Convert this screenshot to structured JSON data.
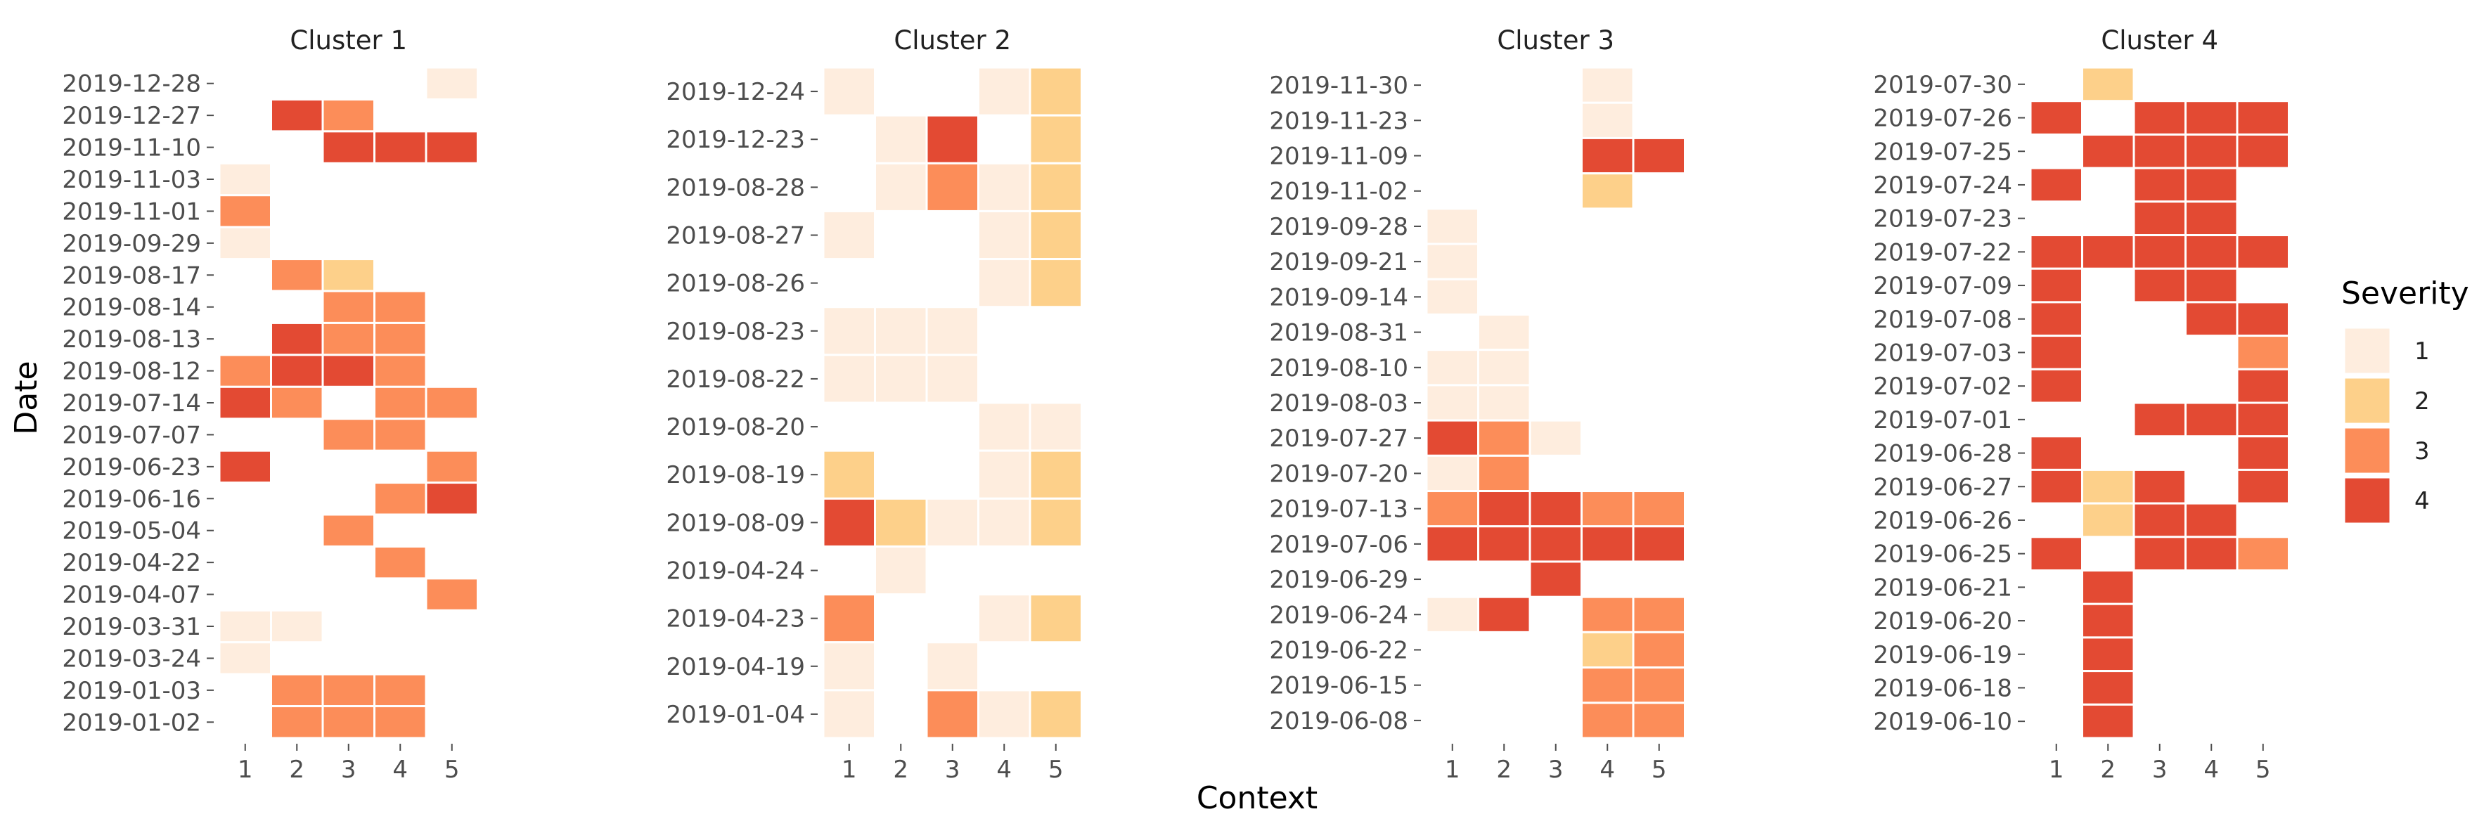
{
  "chart_data": {
    "type": "heatmap",
    "xlabel": "Context",
    "ylabel": "Date",
    "x_categories": [
      "1",
      "2",
      "3",
      "4",
      "5"
    ],
    "legend": {
      "title": "Severity",
      "levels": [
        {
          "label": "1",
          "color": "#FEEDDE"
        },
        {
          "label": "2",
          "color": "#FDD08A"
        },
        {
          "label": "3",
          "color": "#FC8D59"
        },
        {
          "label": "4",
          "color": "#E34A33"
        }
      ]
    },
    "facets": [
      {
        "title": "Cluster 1",
        "dates": [
          "2019-12-28",
          "2019-12-27",
          "2019-11-10",
          "2019-11-03",
          "2019-11-01",
          "2019-09-29",
          "2019-08-17",
          "2019-08-14",
          "2019-08-13",
          "2019-08-12",
          "2019-07-14",
          "2019-07-07",
          "2019-06-23",
          "2019-06-16",
          "2019-05-04",
          "2019-04-22",
          "2019-04-07",
          "2019-03-31",
          "2019-03-24",
          "2019-01-03",
          "2019-01-02"
        ],
        "values": [
          [
            0,
            0,
            0,
            0,
            1
          ],
          [
            0,
            4,
            3,
            0,
            0
          ],
          [
            0,
            0,
            4,
            4,
            4
          ],
          [
            1,
            0,
            0,
            0,
            0
          ],
          [
            3,
            0,
            0,
            0,
            0
          ],
          [
            1,
            0,
            0,
            0,
            0
          ],
          [
            0,
            3,
            2,
            0,
            0
          ],
          [
            0,
            0,
            3,
            3,
            0
          ],
          [
            0,
            4,
            3,
            3,
            0
          ],
          [
            3,
            4,
            4,
            3,
            0
          ],
          [
            4,
            3,
            0,
            3,
            3
          ],
          [
            0,
            0,
            3,
            3,
            0
          ],
          [
            4,
            0,
            0,
            0,
            3
          ],
          [
            0,
            0,
            0,
            3,
            4
          ],
          [
            0,
            0,
            3,
            0,
            0
          ],
          [
            0,
            0,
            0,
            3,
            0
          ],
          [
            0,
            0,
            0,
            0,
            3
          ],
          [
            1,
            1,
            0,
            0,
            0
          ],
          [
            1,
            0,
            0,
            0,
            0
          ],
          [
            0,
            3,
            3,
            3,
            0
          ],
          [
            0,
            3,
            3,
            3,
            0
          ]
        ]
      },
      {
        "title": "Cluster 2",
        "dates": [
          "2019-12-24",
          "2019-12-23",
          "2019-08-28",
          "2019-08-27",
          "2019-08-26",
          "2019-08-23",
          "2019-08-22",
          "2019-08-20",
          "2019-08-19",
          "2019-08-09",
          "2019-04-24",
          "2019-04-23",
          "2019-04-19",
          "2019-01-04"
        ],
        "values": [
          [
            1,
            0,
            0,
            1,
            2
          ],
          [
            0,
            1,
            4,
            0,
            2
          ],
          [
            0,
            1,
            3,
            1,
            2
          ],
          [
            1,
            0,
            0,
            1,
            2
          ],
          [
            0,
            0,
            0,
            1,
            2
          ],
          [
            1,
            1,
            1,
            0,
            0
          ],
          [
            1,
            1,
            1,
            0,
            0
          ],
          [
            0,
            0,
            0,
            1,
            1
          ],
          [
            2,
            0,
            0,
            1,
            2
          ],
          [
            4,
            2,
            1,
            1,
            2
          ],
          [
            0,
            1,
            0,
            0,
            0
          ],
          [
            3,
            0,
            0,
            1,
            2
          ],
          [
            1,
            0,
            1,
            0,
            0
          ],
          [
            1,
            0,
            3,
            1,
            2
          ]
        ]
      },
      {
        "title": "Cluster 3",
        "dates": [
          "2019-11-30",
          "2019-11-23",
          "2019-11-09",
          "2019-11-02",
          "2019-09-28",
          "2019-09-21",
          "2019-09-14",
          "2019-08-31",
          "2019-08-10",
          "2019-08-03",
          "2019-07-27",
          "2019-07-20",
          "2019-07-13",
          "2019-07-06",
          "2019-06-29",
          "2019-06-24",
          "2019-06-22",
          "2019-06-15",
          "2019-06-08"
        ],
        "values": [
          [
            0,
            0,
            0,
            1,
            0
          ],
          [
            0,
            0,
            0,
            1,
            0
          ],
          [
            0,
            0,
            0,
            4,
            4
          ],
          [
            0,
            0,
            0,
            2,
            0
          ],
          [
            1,
            0,
            0,
            0,
            0
          ],
          [
            1,
            0,
            0,
            0,
            0
          ],
          [
            1,
            0,
            0,
            0,
            0
          ],
          [
            0,
            1,
            0,
            0,
            0
          ],
          [
            1,
            1,
            0,
            0,
            0
          ],
          [
            1,
            1,
            0,
            0,
            0
          ],
          [
            4,
            3,
            1,
            0,
            0
          ],
          [
            1,
            3,
            0,
            0,
            0
          ],
          [
            3,
            4,
            4,
            3,
            3
          ],
          [
            4,
            4,
            4,
            4,
            4
          ],
          [
            0,
            0,
            4,
            0,
            0
          ],
          [
            1,
            4,
            0,
            3,
            3
          ],
          [
            0,
            0,
            0,
            2,
            3
          ],
          [
            0,
            0,
            0,
            3,
            3
          ],
          [
            0,
            0,
            0,
            3,
            3
          ]
        ]
      },
      {
        "title": "Cluster 4",
        "dates": [
          "2019-07-30",
          "2019-07-26",
          "2019-07-25",
          "2019-07-24",
          "2019-07-23",
          "2019-07-22",
          "2019-07-09",
          "2019-07-08",
          "2019-07-03",
          "2019-07-02",
          "2019-07-01",
          "2019-06-28",
          "2019-06-27",
          "2019-06-26",
          "2019-06-25",
          "2019-06-21",
          "2019-06-20",
          "2019-06-19",
          "2019-06-18",
          "2019-06-10"
        ],
        "values": [
          [
            0,
            2,
            0,
            0,
            0
          ],
          [
            4,
            0,
            4,
            4,
            4
          ],
          [
            0,
            4,
            4,
            4,
            4
          ],
          [
            4,
            0,
            4,
            4,
            0
          ],
          [
            0,
            0,
            4,
            4,
            0
          ],
          [
            4,
            4,
            4,
            4,
            4
          ],
          [
            4,
            0,
            4,
            4,
            0
          ],
          [
            4,
            0,
            0,
            4,
            4
          ],
          [
            4,
            0,
            0,
            0,
            3
          ],
          [
            4,
            0,
            0,
            0,
            4
          ],
          [
            0,
            0,
            4,
            4,
            4
          ],
          [
            4,
            0,
            0,
            0,
            4
          ],
          [
            4,
            2,
            4,
            0,
            4
          ],
          [
            0,
            2,
            4,
            4,
            0
          ],
          [
            4,
            0,
            4,
            4,
            3
          ],
          [
            0,
            4,
            0,
            0,
            0
          ],
          [
            0,
            4,
            0,
            0,
            0
          ],
          [
            0,
            4,
            0,
            0,
            0
          ],
          [
            0,
            4,
            0,
            0,
            0
          ],
          [
            0,
            4,
            0,
            0,
            0
          ]
        ]
      }
    ]
  }
}
